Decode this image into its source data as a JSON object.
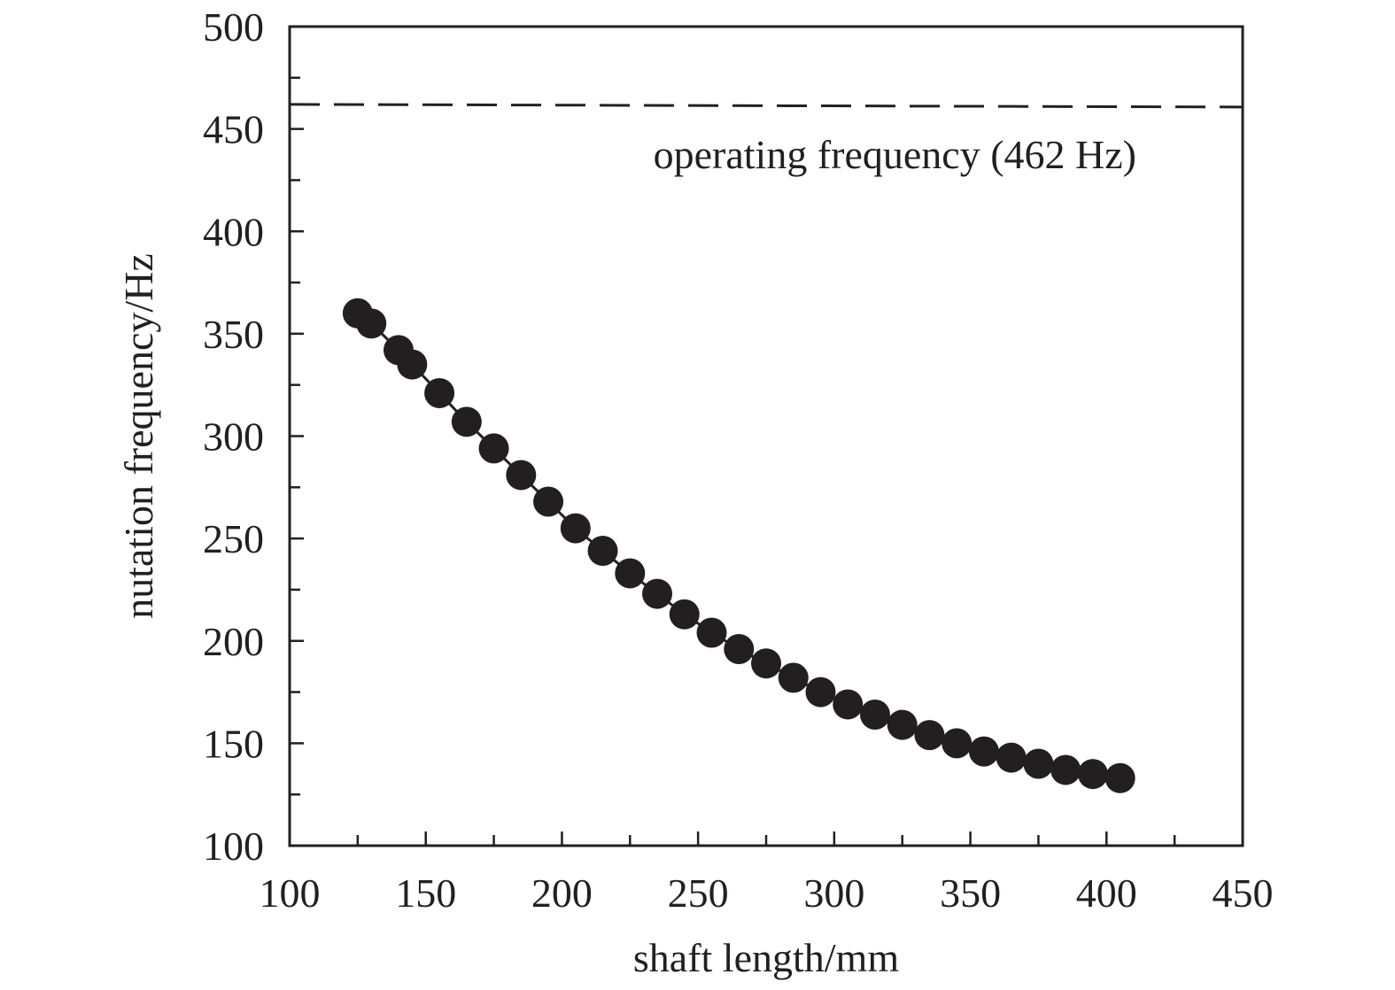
{
  "chart_data": {
    "type": "scatter",
    "title": "",
    "xlabel": "shaft length/mm",
    "ylabel": "nutation frequency/Hz",
    "xlim": [
      100,
      450
    ],
    "ylim": [
      100,
      500
    ],
    "x_ticks": [
      100,
      150,
      200,
      250,
      300,
      350,
      400,
      450
    ],
    "y_ticks": [
      100,
      150,
      200,
      250,
      300,
      350,
      400,
      450,
      500
    ],
    "x_minor_step": 25,
    "y_minor_step": 25,
    "grid": false,
    "legend": "none",
    "series": [
      {
        "marker": "filled-circle",
        "color": "#231f20",
        "connected": true,
        "x": [
          125,
          130,
          140,
          145,
          155,
          165,
          175,
          185,
          195,
          205,
          215,
          225,
          235,
          245,
          255,
          265,
          275,
          285,
          295,
          305,
          315,
          325,
          335,
          345,
          355,
          365,
          375,
          385,
          395,
          405
        ],
        "y": [
          360,
          355,
          342,
          335,
          321,
          307,
          294,
          281,
          268,
          255,
          244,
          233,
          223,
          213,
          204,
          196,
          189,
          182,
          175,
          169,
          164,
          159,
          154,
          150,
          146,
          143,
          140,
          137,
          135,
          133
        ]
      }
    ],
    "reference_line": {
      "value": 462,
      "style": "dashed",
      "label": "operating frequency (462 Hz)"
    }
  }
}
